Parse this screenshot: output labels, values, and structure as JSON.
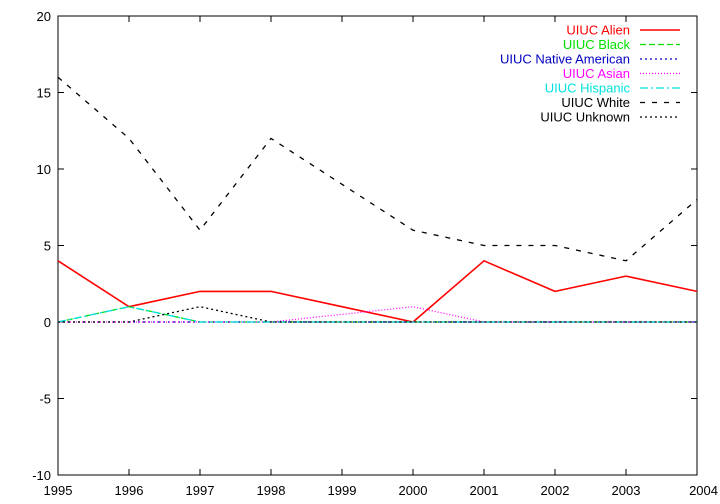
{
  "chart_data": {
    "type": "line",
    "title": "",
    "xlabel": "",
    "ylabel": "",
    "x": [
      1995,
      1996,
      1997,
      1998,
      1999,
      2000,
      2001,
      2002,
      2003,
      2004
    ],
    "xlim": [
      1995,
      2004
    ],
    "ylim": [
      -10,
      20
    ],
    "y_ticks": [
      -10,
      -5,
      0,
      5,
      10,
      15,
      20
    ],
    "grid": false,
    "legend_position": "top-right",
    "series": [
      {
        "name": "UIUC Alien",
        "color": "#ff0000",
        "dash": "solid",
        "values": [
          4,
          1,
          2,
          2,
          1,
          0,
          4,
          2,
          3,
          2
        ]
      },
      {
        "name": "UIUC Black",
        "color": "#00e000",
        "dash": "dashed",
        "values": [
          0,
          1,
          0,
          0,
          0,
          0,
          0,
          0,
          0,
          0
        ]
      },
      {
        "name": "UIUC Native American",
        "color": "#0000c0",
        "dash": "dotted",
        "values": [
          0,
          0,
          0,
          0,
          0,
          0,
          0,
          0,
          0,
          0
        ]
      },
      {
        "name": "UIUC Asian",
        "color": "#ff00ff",
        "dash": "fine-dotted",
        "values": [
          0,
          0,
          0,
          0,
          0.5,
          1,
          0,
          0,
          0,
          0
        ]
      },
      {
        "name": "UIUC Hispanic",
        "color": "#00e0e0",
        "dash": "dash-dot",
        "values": [
          0,
          1,
          0,
          0,
          0,
          0,
          0,
          0,
          0,
          0
        ]
      },
      {
        "name": "UIUC White",
        "color": "#000000",
        "dash": "long-dashed",
        "values": [
          16,
          12,
          6,
          12,
          9,
          6,
          5,
          5,
          4,
          8
        ]
      },
      {
        "name": "UIUC Unknown",
        "color": "#000000",
        "dash": "dotted",
        "values": [
          0,
          0,
          1,
          0,
          0,
          0,
          0,
          0,
          0,
          0
        ]
      }
    ]
  }
}
